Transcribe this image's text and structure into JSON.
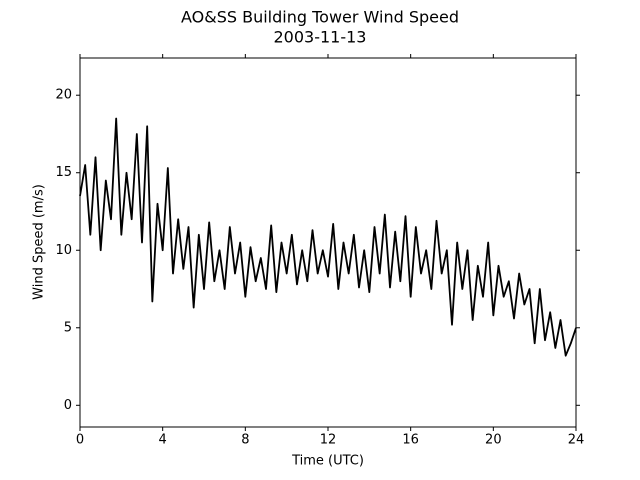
{
  "chart_data": {
    "type": "line",
    "title": "AO&SS Building Tower Wind Speed",
    "subtitle": "2003-11-13",
    "x_label": "Time (UTC)",
    "y_label": "Wind Speed (m/s)",
    "xlim": [
      0,
      24
    ],
    "xticks": [
      0,
      4,
      8,
      12,
      16,
      20,
      24
    ],
    "ylim": [
      -1.4,
      22.4
    ],
    "yticks": [
      0,
      5,
      10,
      15,
      20
    ],
    "grid": false,
    "series": [
      {
        "color": "#000000",
        "x": [
          0,
          0.25,
          0.5,
          0.75,
          1,
          1.25,
          1.5,
          1.75,
          2,
          2.25,
          2.5,
          2.75,
          3,
          3.25,
          3.5,
          3.75,
          4,
          4.25,
          4.5,
          4.75,
          5,
          5.25,
          5.5,
          5.75,
          6,
          6.25,
          6.5,
          6.75,
          7,
          7.25,
          7.5,
          7.75,
          8,
          8.25,
          8.5,
          8.75,
          9,
          9.25,
          9.5,
          9.75,
          10,
          10.25,
          10.5,
          10.75,
          11,
          11.25,
          11.5,
          11.75,
          12,
          12.25,
          12.5,
          12.75,
          13,
          13.25,
          13.5,
          13.75,
          14,
          14.25,
          14.5,
          14.75,
          15,
          15.25,
          15.5,
          15.75,
          16,
          16.25,
          16.5,
          16.75,
          17,
          17.25,
          17.5,
          17.75,
          18,
          18.25,
          18.5,
          18.75,
          19,
          19.25,
          19.5,
          19.75,
          20,
          20.25,
          20.5,
          20.75,
          21,
          21.25,
          21.5,
          21.75,
          22,
          22.25,
          22.5,
          22.75,
          23,
          23.25,
          23.5,
          23.75,
          24
        ],
        "values": [
          13.5,
          15.5,
          11,
          16,
          10,
          14.5,
          12,
          18.5,
          11,
          15,
          12,
          17.5,
          10.5,
          18,
          6.7,
          13,
          10,
          15.3,
          8.5,
          12,
          8.8,
          11.5,
          6.3,
          11,
          7.5,
          11.8,
          8,
          10,
          7.5,
          11.5,
          8.5,
          10.5,
          7,
          10.2,
          8,
          9.5,
          7.5,
          11.6,
          7.3,
          10.5,
          8.5,
          11,
          7.8,
          10,
          8,
          11.3,
          8.5,
          10,
          8.3,
          11.7,
          7.5,
          10.5,
          8.5,
          11,
          7.6,
          10,
          7.3,
          11.5,
          8.5,
          12.3,
          7.6,
          11.2,
          8,
          12.2,
          7,
          11.5,
          8.5,
          10,
          7.5,
          11.9,
          8.5,
          10,
          5.2,
          10.5,
          7.5,
          10,
          5.5,
          9,
          7,
          10.5,
          5.8,
          9,
          7,
          8,
          5.6,
          8.5,
          6.5,
          7.5,
          4,
          7.5,
          4.2,
          6,
          3.7,
          5.5,
          3.2,
          4,
          5
        ]
      }
    ]
  }
}
